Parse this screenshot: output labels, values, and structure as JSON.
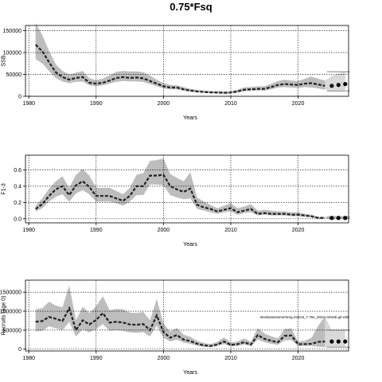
{
  "title": "0.75*Fsq",
  "chart_data": [
    {
      "type": "line",
      "xlabel": "Years",
      "ylabel": "SSB",
      "xlim": [
        1979.5,
        2027.5
      ],
      "ylim": [
        0,
        162000
      ],
      "xticks": [
        1980,
        1990,
        2000,
        2010,
        2020
      ],
      "yticks": [
        0,
        50000,
        100000,
        150000
      ],
      "ytick_labels": [
        "0",
        "50000",
        "100000",
        "150000"
      ],
      "grid": true,
      "x": [
        1981,
        1982,
        1983,
        1984,
        1985,
        1986,
        1987,
        1988,
        1989,
        1990,
        1991,
        1992,
        1993,
        1994,
        1995,
        1996,
        1997,
        1998,
        1999,
        2000,
        2001,
        2002,
        2003,
        2004,
        2005,
        2006,
        2007,
        2008,
        2009,
        2010,
        2011,
        2012,
        2013,
        2014,
        2015,
        2016,
        2017,
        2018,
        2019,
        2020,
        2021,
        2022,
        2023,
        2024
      ],
      "median": [
        118000,
        103000,
        78000,
        55000,
        44000,
        38000,
        42000,
        44000,
        31000,
        29000,
        31000,
        36000,
        42000,
        44000,
        42000,
        43000,
        41000,
        35000,
        29000,
        23000,
        20000,
        20000,
        16000,
        13000,
        11000,
        10000,
        9000,
        8500,
        8000,
        8500,
        11000,
        15000,
        16000,
        17000,
        17000,
        21000,
        26000,
        28000,
        27000,
        26000,
        29000,
        30000,
        27000,
        24000
      ],
      "lower": [
        85000,
        75000,
        58000,
        42000,
        34000,
        30000,
        33000,
        34000,
        25000,
        23000,
        25000,
        29000,
        33000,
        35000,
        34000,
        34000,
        33000,
        28000,
        23000,
        18000,
        16000,
        16000,
        12500,
        10500,
        9000,
        8000,
        7000,
        6500,
        6000,
        6500,
        8500,
        11500,
        12500,
        13000,
        13000,
        16000,
        20000,
        21000,
        20000,
        19000,
        21000,
        20000,
        18000,
        15000
      ],
      "upper": [
        168000,
        140000,
        104000,
        73000,
        58000,
        50000,
        54000,
        58000,
        41000,
        37000,
        40000,
        48000,
        56000,
        58000,
        57000,
        57000,
        55000,
        47000,
        38000,
        30000,
        26000,
        25000,
        21000,
        17000,
        15000,
        13000,
        12000,
        11500,
        11000,
        11500,
        15500,
        20500,
        21500,
        23000,
        23000,
        28500,
        35000,
        38000,
        36000,
        35000,
        40000,
        45000,
        40000,
        36000
      ],
      "projection": [
        {
          "x": 2025,
          "median": 24000,
          "lower": 12000,
          "upper": 46000
        },
        {
          "x": 2026,
          "median": 26000,
          "lower": 13000,
          "upper": 52000
        },
        {
          "x": 2027,
          "median": 28000,
          "lower": 14000,
          "upper": 56000
        }
      ]
    },
    {
      "type": "line",
      "xlabel": "Years",
      "ylabel": "F1-3",
      "xlim": [
        1979.5,
        2027.5
      ],
      "ylim": [
        -0.05,
        0.78
      ],
      "xticks": [
        1980,
        1990,
        2000,
        2010,
        2020
      ],
      "yticks": [
        0.0,
        0.2,
        0.4,
        0.6
      ],
      "ytick_labels": [
        "0.0",
        "0.2",
        "0.4",
        "0.6"
      ],
      "grid": true,
      "x": [
        1981,
        1982,
        1983,
        1984,
        1985,
        1986,
        1987,
        1988,
        1989,
        1990,
        1991,
        1992,
        1993,
        1994,
        1995,
        1996,
        1997,
        1998,
        1999,
        2000,
        2001,
        2002,
        2003,
        2004,
        2005,
        2006,
        2007,
        2008,
        2009,
        2010,
        2011,
        2012,
        2013,
        2014,
        2015,
        2016,
        2017,
        2018,
        2019,
        2020,
        2021,
        2022,
        2023,
        2024
      ],
      "median": [
        0.12,
        0.18,
        0.28,
        0.36,
        0.4,
        0.29,
        0.41,
        0.46,
        0.39,
        0.28,
        0.28,
        0.28,
        0.25,
        0.22,
        0.28,
        0.4,
        0.4,
        0.53,
        0.53,
        0.54,
        0.4,
        0.36,
        0.33,
        0.37,
        0.17,
        0.14,
        0.12,
        0.09,
        0.11,
        0.13,
        0.08,
        0.1,
        0.12,
        0.06,
        0.07,
        0.06,
        0.06,
        0.06,
        0.05,
        0.05,
        0.04,
        0.03,
        0.01,
        0.01
      ],
      "lower": [
        0.09,
        0.13,
        0.21,
        0.27,
        0.3,
        0.21,
        0.31,
        0.35,
        0.3,
        0.21,
        0.21,
        0.21,
        0.19,
        0.16,
        0.21,
        0.29,
        0.29,
        0.42,
        0.42,
        0.41,
        0.29,
        0.26,
        0.24,
        0.25,
        0.12,
        0.1,
        0.08,
        0.06,
        0.08,
        0.09,
        0.05,
        0.07,
        0.08,
        0.04,
        0.05,
        0.04,
        0.04,
        0.04,
        0.03,
        0.03,
        0.025,
        0.015,
        0.005,
        0.005
      ],
      "upper": [
        0.16,
        0.25,
        0.37,
        0.46,
        0.52,
        0.38,
        0.54,
        0.61,
        0.53,
        0.38,
        0.38,
        0.38,
        0.34,
        0.3,
        0.38,
        0.54,
        0.56,
        0.71,
        0.72,
        0.74,
        0.55,
        0.5,
        0.46,
        0.57,
        0.26,
        0.21,
        0.17,
        0.13,
        0.16,
        0.19,
        0.13,
        0.15,
        0.18,
        0.1,
        0.11,
        0.1,
        0.09,
        0.09,
        0.08,
        0.08,
        0.06,
        0.05,
        0.025,
        0.025
      ],
      "projection": [
        {
          "x": 2025,
          "median": 0.01,
          "lower": 0.005,
          "upper": 0.025
        },
        {
          "x": 2026,
          "median": 0.01,
          "lower": 0.005,
          "upper": 0.025
        },
        {
          "x": 2027,
          "median": 0.01,
          "lower": 0.005,
          "upper": 0.025
        }
      ]
    },
    {
      "type": "line",
      "xlabel": "Years",
      "ylabel": "Recruits (age 0)",
      "xlim": [
        1979.5,
        2027.5
      ],
      "ylim": [
        -50000,
        1820000
      ],
      "xticks": [
        1980,
        1990,
        2000,
        2010,
        2020
      ],
      "yticks": [
        0,
        500000,
        1000000,
        1500000
      ],
      "ytick_labels": [
        "0",
        "500000",
        "1000000",
        "1500000"
      ],
      "grid": true,
      "annotation": "stockassessmentorg.ss8cat_7.76s_2024 r18155 git e38",
      "x": [
        1981,
        1982,
        1983,
        1984,
        1985,
        1986,
        1987,
        1988,
        1989,
        1990,
        1991,
        1992,
        1993,
        1994,
        1995,
        1996,
        1997,
        1998,
        1999,
        2000,
        2001,
        2002,
        2003,
        2004,
        2005,
        2006,
        2007,
        2008,
        2009,
        2010,
        2011,
        2012,
        2013,
        2014,
        2015,
        2016,
        2017,
        2018,
        2019,
        2020,
        2021,
        2022,
        2023,
        2024
      ],
      "median": [
        720000,
        740000,
        850000,
        800000,
        740000,
        1080000,
        500000,
        760000,
        650000,
        770000,
        950000,
        700000,
        720000,
        700000,
        650000,
        640000,
        660000,
        500000,
        890000,
        450000,
        300000,
        370000,
        250000,
        210000,
        140000,
        100000,
        80000,
        120000,
        200000,
        110000,
        130000,
        180000,
        120000,
        370000,
        270000,
        220000,
        180000,
        350000,
        360000,
        130000,
        130000,
        140000,
        190000,
        200000
      ],
      "lower": [
        470000,
        480000,
        600000,
        550000,
        500000,
        720000,
        330000,
        520000,
        440000,
        530000,
        660000,
        480000,
        500000,
        480000,
        440000,
        430000,
        450000,
        330000,
        620000,
        300000,
        200000,
        250000,
        170000,
        140000,
        90000,
        60000,
        50000,
        80000,
        130000,
        70000,
        80000,
        120000,
        75000,
        250000,
        180000,
        140000,
        110000,
        230000,
        240000,
        80000,
        80000,
        80000,
        60000,
        50000
      ],
      "upper": [
        1050000,
        1080000,
        1250000,
        1150000,
        1100000,
        1680000,
        760000,
        1120000,
        950000,
        1130000,
        1400000,
        1030000,
        1060000,
        1050000,
        960000,
        950000,
        980000,
        760000,
        1320000,
        680000,
        460000,
        560000,
        380000,
        320000,
        220000,
        160000,
        130000,
        190000,
        310000,
        170000,
        200000,
        280000,
        190000,
        560000,
        410000,
        340000,
        280000,
        530000,
        550000,
        200000,
        220000,
        300000,
        620000,
        860000
      ],
      "projection": [
        {
          "x": 2025,
          "median": 200000,
          "lower": 50000,
          "upper": 500000
        },
        {
          "x": 2026,
          "median": 200000,
          "lower": 50000,
          "upper": 500000
        },
        {
          "x": 2027,
          "median": 200000,
          "lower": 50000,
          "upper": 500000
        }
      ]
    }
  ]
}
